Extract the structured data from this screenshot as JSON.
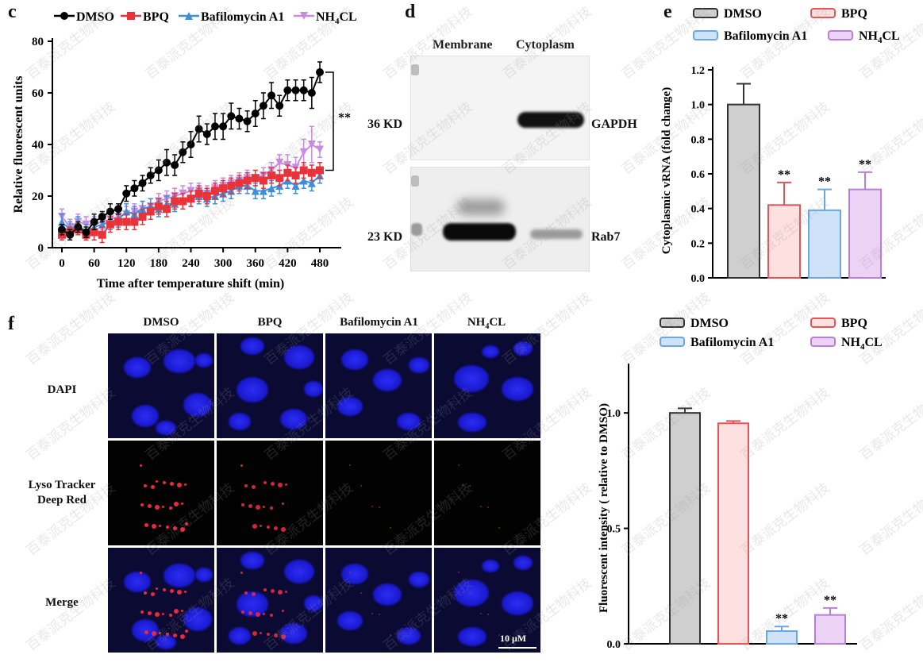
{
  "panels": {
    "c": "c",
    "d": "d",
    "e": "e",
    "f": "f"
  },
  "chart_data": [
    {
      "type": "line",
      "panel": "c",
      "xlabel": "Time after temperature shift (min)",
      "ylabel": "Relative fluorescent units",
      "xlim": [
        0,
        480
      ],
      "ylim": [
        0,
        80
      ],
      "xticks": [
        "0",
        "60",
        "120",
        "180",
        "240",
        "300",
        "360",
        "420",
        "480"
      ],
      "yticks": [
        "0",
        "20",
        "40",
        "60",
        "80"
      ],
      "legend_position": "top",
      "annotation": "**",
      "x": [
        0,
        15,
        30,
        45,
        60,
        75,
        90,
        105,
        120,
        135,
        150,
        165,
        180,
        195,
        210,
        225,
        240,
        255,
        270,
        285,
        300,
        315,
        330,
        345,
        360,
        375,
        390,
        405,
        420,
        435,
        450,
        465,
        480
      ],
      "series": [
        {
          "name": "DMSO",
          "color": "#000000",
          "marker": "circle",
          "values": [
            7,
            5,
            8,
            6,
            10,
            12,
            14,
            15,
            21,
            23,
            25,
            28,
            30,
            33,
            32,
            37,
            40,
            46,
            44,
            47,
            47,
            51,
            50,
            49,
            52,
            55,
            59,
            55,
            61,
            61,
            61,
            60,
            68
          ],
          "errors": [
            2,
            2,
            2,
            2,
            3,
            2,
            3,
            2,
            3,
            3,
            3,
            3,
            4,
            5,
            4,
            4,
            5,
            5,
            4,
            5,
            5,
            5,
            4,
            4,
            5,
            5,
            5,
            4,
            4,
            4,
            4,
            6,
            4
          ]
        },
        {
          "name": "BPQ",
          "color": "#e8333a",
          "marker": "square",
          "values": [
            5,
            6,
            7,
            5,
            6,
            5,
            9,
            10,
            10,
            10,
            12,
            14,
            16,
            15,
            18,
            18,
            19,
            21,
            20,
            22,
            23,
            24,
            25,
            26,
            27,
            26,
            28,
            27,
            29,
            28,
            30,
            29,
            30
          ],
          "errors": [
            2,
            2,
            2,
            2,
            3,
            3,
            3,
            3,
            3,
            3,
            3,
            3,
            3,
            3,
            3,
            3,
            3,
            3,
            3,
            3,
            3,
            3,
            3,
            3,
            3,
            3,
            3,
            3,
            3,
            3,
            3,
            3,
            3
          ]
        },
        {
          "name": "Bafilomycin A1",
          "color": "#3d8fde",
          "marker": "triangle",
          "values": [
            10,
            7,
            9,
            6,
            8,
            9,
            10,
            11,
            14,
            13,
            15,
            16,
            15,
            17,
            17,
            18,
            19,
            20,
            19,
            20,
            21,
            22,
            24,
            24,
            22,
            22,
            23,
            24,
            26,
            24,
            26,
            25,
            28
          ],
          "errors": [
            3,
            3,
            3,
            3,
            3,
            3,
            3,
            3,
            3,
            3,
            3,
            3,
            3,
            3,
            3,
            3,
            3,
            3,
            3,
            3,
            3,
            3,
            3,
            3,
            3,
            3,
            3,
            3,
            3,
            3,
            3,
            3,
            3
          ]
        },
        {
          "name": "NH4CL",
          "color": "#c98be0",
          "marker": "triangle-down",
          "values": [
            12,
            8,
            10,
            9,
            9,
            10,
            11,
            12,
            13,
            14,
            15,
            16,
            18,
            19,
            20,
            21,
            22,
            22,
            21,
            23,
            24,
            25,
            26,
            27,
            27,
            28,
            30,
            33,
            32,
            31,
            37,
            40,
            38
          ],
          "errors": [
            3,
            3,
            3,
            3,
            3,
            3,
            3,
            3,
            3,
            3,
            3,
            3,
            3,
            3,
            3,
            3,
            3,
            3,
            3,
            3,
            3,
            3,
            3,
            3,
            3,
            3,
            3,
            3,
            4,
            4,
            5,
            7,
            3
          ]
        }
      ]
    },
    {
      "type": "bar",
      "panel": "e",
      "xlabel": "",
      "ylabel": "Cytoplasmic vRNA (fold change)",
      "ylim": [
        0,
        1.2
      ],
      "yticks": [
        "0.0",
        "0.2",
        "0.4",
        "0.6",
        "0.8",
        "1.0",
        "1.2"
      ],
      "legend_position": "top",
      "categories": [
        "DMSO",
        "BPQ",
        "Bafilomycin A1",
        "NH4CL"
      ],
      "values": [
        1.0,
        0.42,
        0.39,
        0.51
      ],
      "errors": [
        0.12,
        0.13,
        0.12,
        0.1
      ],
      "significance": [
        "",
        "**",
        "**",
        "**"
      ],
      "fill_colors": [
        "#cfcfcf",
        "#fde0e0",
        "#cfe3f8",
        "#ecd2f5"
      ],
      "edge_colors": [
        "#333333",
        "#e8535a",
        "#6aa7e3",
        "#b97fd6"
      ]
    },
    {
      "type": "bar",
      "panel": "f",
      "xlabel": "",
      "ylabel": "Fluorescent intensity ( relative to DMSO)",
      "ylim": [
        0,
        1.2
      ],
      "yticks": [
        "0.0",
        "0.5",
        "1.0"
      ],
      "legend_position": "top",
      "categories": [
        "DMSO",
        "BPQ",
        "Bafilomycin A1",
        "NH4CL"
      ],
      "values": [
        1.0,
        0.955,
        0.055,
        0.125
      ],
      "errors": [
        0.02,
        0.01,
        0.02,
        0.03
      ],
      "significance": [
        "",
        "",
        "**",
        "**"
      ],
      "fill_colors": [
        "#cfcfcf",
        "#fde0e0",
        "#cfe3f8",
        "#ecd2f5"
      ],
      "edge_colors": [
        "#333333",
        "#e8535a",
        "#6aa7e3",
        "#b97fd6"
      ]
    }
  ],
  "legend_labels": {
    "dmso": "DMSO",
    "bpq": "BPQ",
    "baf": "Bafilomycin A1",
    "nh4_main": "NH",
    "nh4_sub": "4",
    "nh4_tail": "CL"
  },
  "blot": {
    "col_membrane": "Membrane",
    "col_cytoplasm": "Cytoplasm",
    "mw_top": "36 KD",
    "mw_bottom": "23 KD",
    "band_top": "GAPDH",
    "band_bottom": "Rab7"
  },
  "microscopy": {
    "columns": [
      "DMSO",
      "BPQ",
      "Bafilomycin A1",
      "NH4CL"
    ],
    "rows": [
      {
        "line1": "DAPI",
        "line2": ""
      },
      {
        "line1": "Lyso Tracker",
        "line2": "Deep Red"
      },
      {
        "line1": "Merge",
        "line2": ""
      }
    ],
    "scale_bar": "10 μM"
  }
}
